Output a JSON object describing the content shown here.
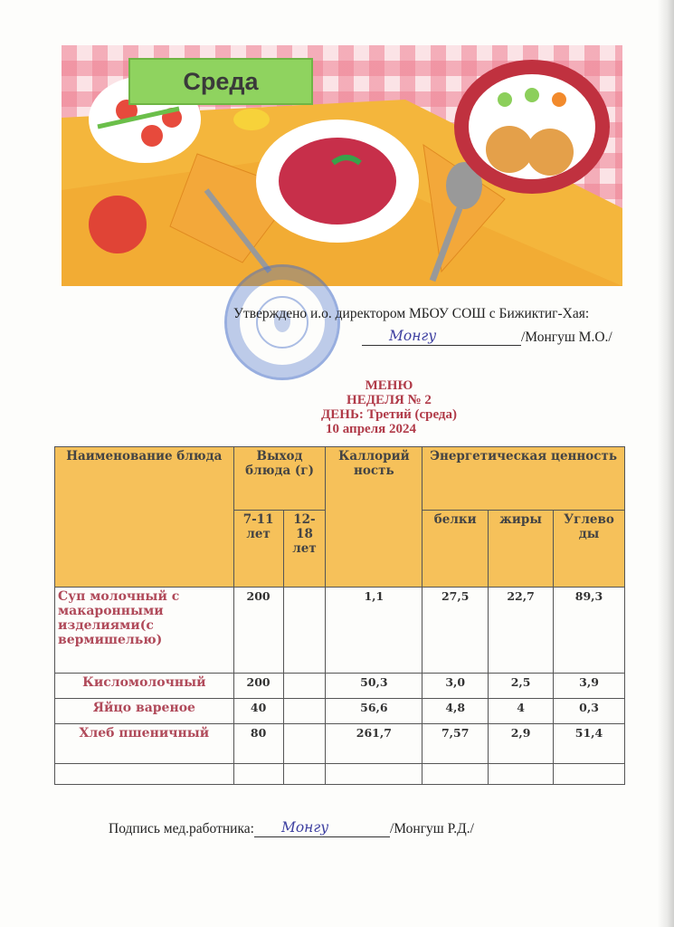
{
  "banner": {
    "title": "Среда"
  },
  "approval": {
    "line1": "Утверждено и.о. директором МБОУ СОШ с Бижиктиг-Хая:",
    "name": "/Монгуш М.О./"
  },
  "heading": {
    "menu": "МЕНЮ",
    "week": "НЕДЕЛЯ № 2",
    "day": "ДЕНЬ: Третий (среда)",
    "date": "10 апреля 2024"
  },
  "table": {
    "headers": {
      "dish": "Наименование блюда",
      "yield": "Выход блюда (г)",
      "calories": "Каллорий ность",
      "energy": "Энергетическая ценность",
      "age1": "7-11 лет",
      "age2": "12-18 лет",
      "protein": "белки",
      "fat": "жиры",
      "carbs": "Углево ды"
    },
    "rows": [
      {
        "name": "Суп молочный с макаронными изделиями(с вермишелью)",
        "y1": "200",
        "y2": "",
        "cal": "1,1",
        "p": "27,5",
        "f": "22,7",
        "c": "89,3"
      },
      {
        "name": "Кисломолочный",
        "y1": "200",
        "y2": "",
        "cal": "50,3",
        "p": "3,0",
        "f": "2,5",
        "c": "3,9"
      },
      {
        "name": "Яйцо вареное",
        "y1": "40",
        "y2": "",
        "cal": "56,6",
        "p": "4,8",
        "f": "4",
        "c": "0,3"
      },
      {
        "name": "Хлеб пшеничный",
        "y1": "80",
        "y2": "",
        "cal": "261,7",
        "p": "7,57",
        "f": "2,9",
        "c": "51,4"
      },
      {
        "name": "",
        "y1": "",
        "y2": "",
        "cal": "",
        "p": "",
        "f": "",
        "c": ""
      }
    ]
  },
  "footer": {
    "label": "Подпись мед.работника:",
    "name": "/Монгуш Р.Д./"
  },
  "colors": {
    "header_bg": "#f6c15a",
    "dish_text": "#b04a5a",
    "heading_text": "#b03a48",
    "banner_label": "#8fd35f"
  }
}
